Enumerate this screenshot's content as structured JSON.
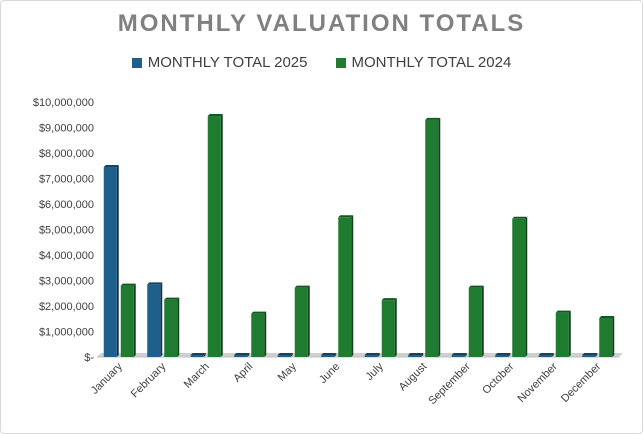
{
  "chart_data": {
    "type": "bar",
    "title": "MONTHLY VALUATION TOTALS",
    "xlabel": "",
    "ylabel": "",
    "categories": [
      "January",
      "February",
      "March",
      "April",
      "May",
      "June",
      "July",
      "August",
      "September",
      "October",
      "November",
      "December"
    ],
    "series": [
      {
        "name": "MONTHLY TOTAL 2025",
        "color": "#1f5f8b",
        "values": [
          7450000,
          2850000,
          0,
          0,
          0,
          0,
          0,
          0,
          0,
          0,
          0,
          0
        ]
      },
      {
        "name": "MONTHLY TOTAL 2024",
        "color": "#1e7b30",
        "values": [
          2800000,
          2250000,
          9450000,
          1700000,
          2720000,
          5480000,
          2230000,
          9300000,
          2720000,
          5420000,
          1740000,
          1530000
        ]
      }
    ],
    "ylim": [
      0,
      10000000
    ],
    "yticks": [
      "$-",
      "$1,000,000",
      "$2,000,000",
      "$3,000,000",
      "$4,000,000",
      "$5,000,000",
      "$6,000,000",
      "$7,000,000",
      "$8,000,000",
      "$9,000,000",
      "$10,000,000"
    ],
    "grid": false,
    "legend_position": "top"
  }
}
